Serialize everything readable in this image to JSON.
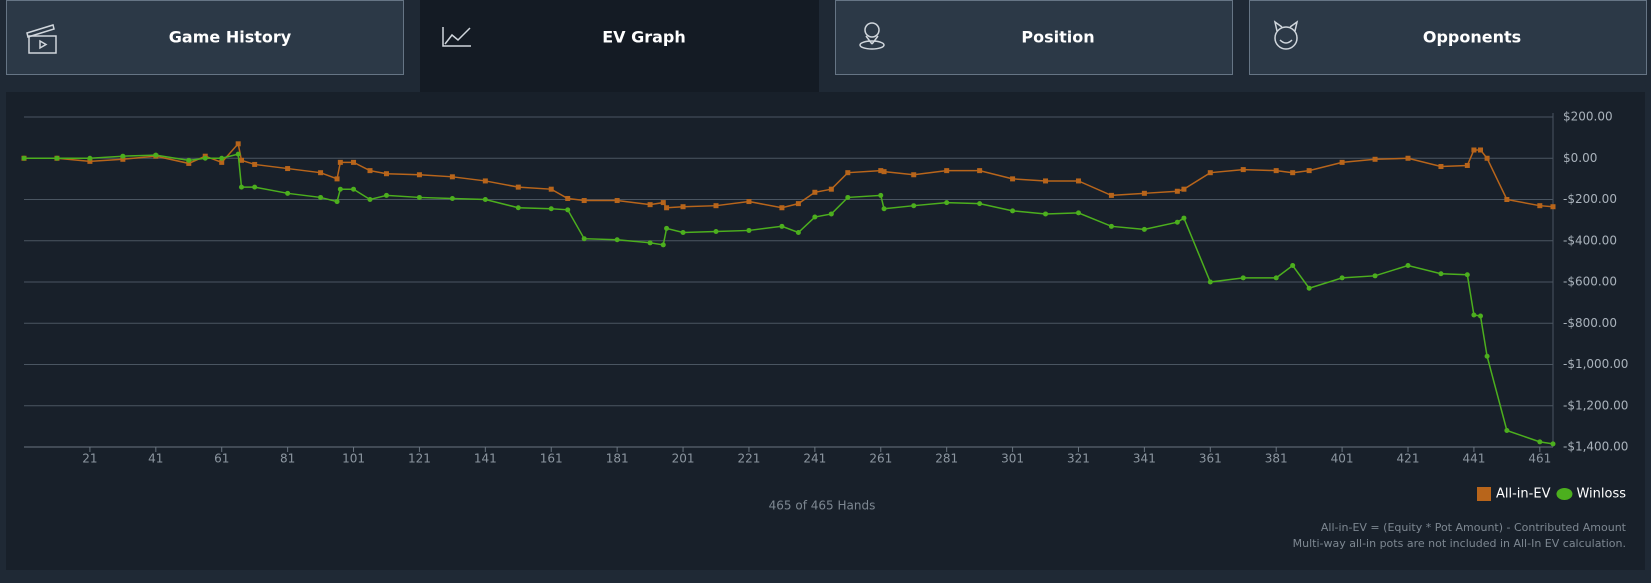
{
  "tabs": [
    "Game History",
    "EV Graph",
    "Position",
    "Opponents"
  ],
  "chart_data": {
    "type": "line",
    "x": [
      1,
      11,
      21,
      31,
      41,
      51,
      56,
      61,
      66,
      67,
      71,
      81,
      91,
      96,
      97,
      101,
      106,
      111,
      121,
      131,
      141,
      151,
      161,
      166,
      171,
      181,
      191,
      195,
      196,
      201,
      211,
      221,
      231,
      236,
      241,
      246,
      251,
      261,
      262,
      271,
      281,
      291,
      301,
      311,
      321,
      331,
      341,
      351,
      353,
      361,
      371,
      381,
      386,
      391,
      401,
      411,
      421,
      431,
      439,
      441,
      443,
      445,
      451,
      461,
      465
    ],
    "series": [
      {
        "name": "All-in-EV",
        "color": "#b8651b",
        "marker": "square",
        "values": [
          0,
          0,
          -15,
          -5,
          10,
          -25,
          10,
          -20,
          70,
          -10,
          -30,
          -50,
          -70,
          -100,
          -20,
          -20,
          -60,
          -75,
          -80,
          -90,
          -110,
          -140,
          -150,
          -195,
          -205,
          -205,
          -225,
          -215,
          -240,
          -235,
          -230,
          -210,
          -240,
          -220,
          -165,
          -150,
          -70,
          -60,
          -65,
          -80,
          -60,
          -60,
          -100,
          -110,
          -110,
          -180,
          -170,
          -160,
          -150,
          -70,
          -55,
          -60,
          -70,
          -60,
          -20,
          -5,
          0,
          -40,
          -35,
          40,
          40,
          0,
          -200,
          -230,
          -235
        ]
      },
      {
        "name": "Winloss",
        "color": "#4caf1e",
        "marker": "circle",
        "values": [
          0,
          0,
          0,
          10,
          15,
          -10,
          0,
          0,
          20,
          -140,
          -140,
          -170,
          -190,
          -210,
          -150,
          -150,
          -200,
          -180,
          -190,
          -195,
          -200,
          -240,
          -245,
          -250,
          -390,
          -395,
          -410,
          -420,
          -340,
          -360,
          -355,
          -350,
          -330,
          -360,
          -285,
          -270,
          -190,
          -180,
          -245,
          -230,
          -215,
          -220,
          -255,
          -270,
          -265,
          -330,
          -345,
          -310,
          -290,
          -600,
          -580,
          -580,
          -520,
          -630,
          -580,
          -570,
          -520,
          -560,
          -565,
          -760,
          -765,
          -960,
          -1320,
          -1375,
          -1385
        ]
      }
    ],
    "xlim": [
      1,
      465
    ],
    "xticks": [
      21,
      41,
      61,
      81,
      101,
      121,
      141,
      161,
      181,
      201,
      221,
      241,
      261,
      281,
      301,
      321,
      341,
      361,
      381,
      401,
      421,
      441,
      461
    ],
    "ylim": [
      -1400,
      200
    ],
    "yticks": [
      {
        "value": 200,
        "label": "$200.00"
      },
      {
        "value": 0,
        "label": "$0.00"
      },
      {
        "value": -200,
        "label": "-$200.00"
      },
      {
        "value": -400,
        "label": "-$400.00"
      },
      {
        "value": -600,
        "label": "-$600.00"
      },
      {
        "value": -800,
        "label": "-$800.00"
      },
      {
        "value": -1000,
        "label": "-$1,000.00"
      },
      {
        "value": -1200,
        "label": "-$1,200.00"
      },
      {
        "value": -1400,
        "label": "-$1,400.00"
      }
    ],
    "grid": true,
    "legend": "bottom-right",
    "caption": "465 of 465 Hands",
    "notes": [
      "All-in-EV = (Equity * Pot Amount) - Contributed Amount",
      "Multi-way all-in pots are not included in All-In EV calculation."
    ]
  }
}
